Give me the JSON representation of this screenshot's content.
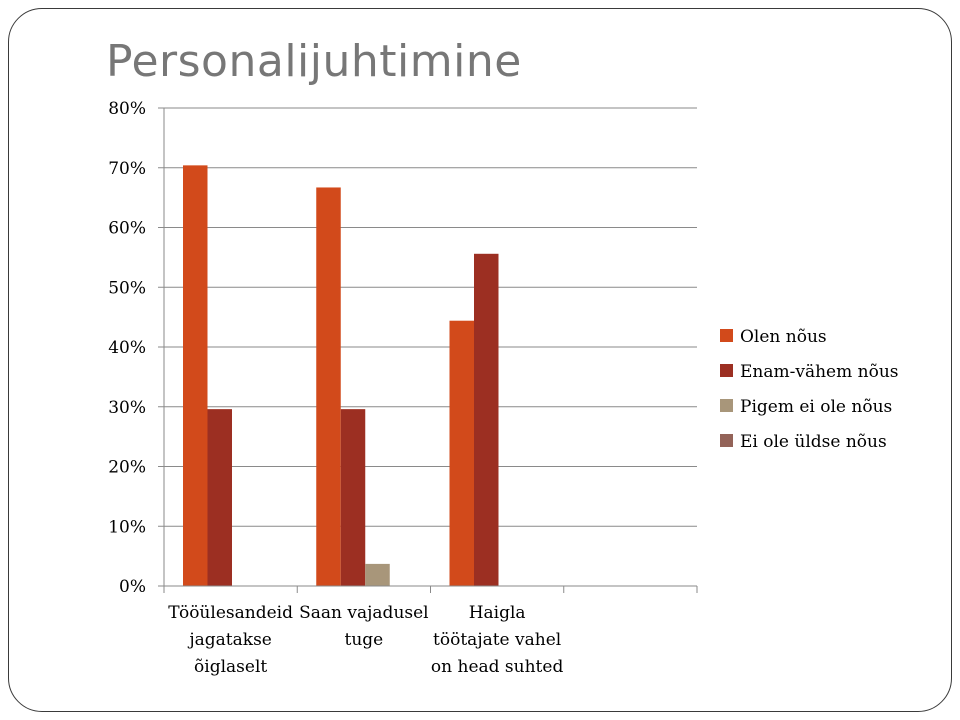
{
  "slide": {
    "title": "Personalijuhtimine"
  },
  "chart_data": {
    "type": "bar",
    "categories": [
      [
        "Tööülesandeid",
        "jagatakse",
        "õiglaselt"
      ],
      [
        "Saan vajadusel",
        "tuge"
      ],
      [
        "Haigla",
        "töötajate vahel",
        "on head suhted"
      ],
      [
        ""
      ]
    ],
    "series": [
      {
        "name": "Olen nõus",
        "color": "#d24a1b",
        "values": [
          70.4,
          66.7,
          44.4,
          null
        ]
      },
      {
        "name": "Enam-vähem nõus",
        "color": "#9c2f22",
        "values": [
          29.6,
          29.6,
          55.6,
          null
        ]
      },
      {
        "name": "Pigem ei ole nõus",
        "color": "#a8967a",
        "values": [
          0,
          3.7,
          0,
          null
        ]
      },
      {
        "name": "Ei ole üldse nõus",
        "color": "#936358",
        "values": [
          0,
          0,
          0,
          null
        ]
      }
    ],
    "ylim": [
      0,
      80
    ],
    "yticks": [
      "0%",
      "10%",
      "20%",
      "30%",
      "40%",
      "50%",
      "60%",
      "70%",
      "80%"
    ],
    "grid": true,
    "legend_position": "right"
  }
}
